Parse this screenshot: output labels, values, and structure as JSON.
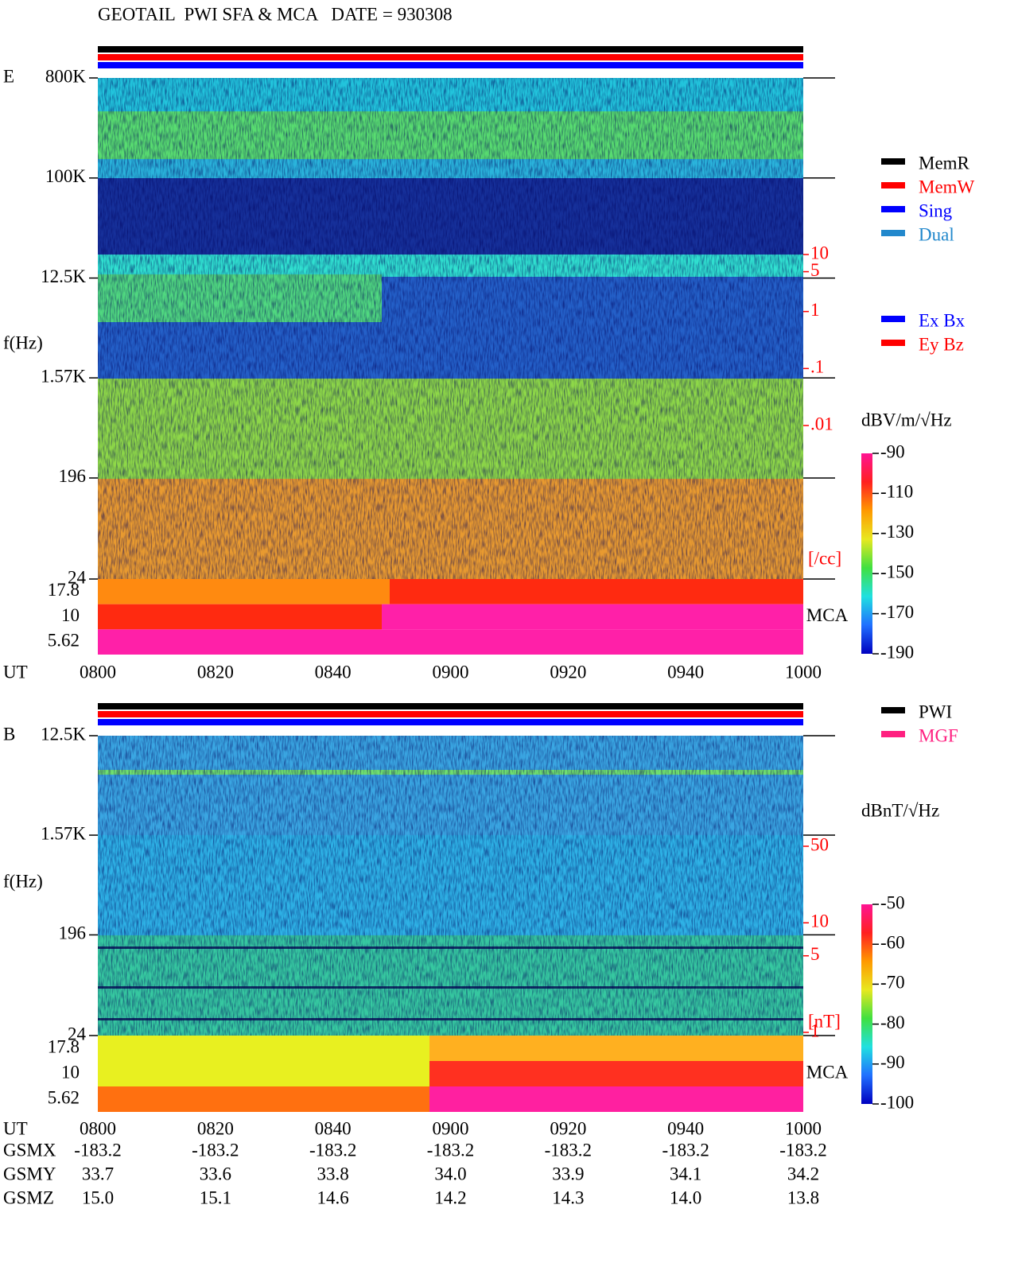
{
  "title": "GEOTAIL  PWI SFA & MCA   DATE = 930308",
  "legends": [
    [
      {
        "name": "MemR",
        "color": "#000000"
      },
      {
        "name": "MemW",
        "color": "#ff0000"
      },
      {
        "name": "Sing",
        "color": "#0000ff"
      },
      {
        "name": "Dual",
        "color": "#2288cc"
      }
    ],
    [
      {
        "name": "Ex Bx",
        "color": "#0000ff"
      },
      {
        "name": "Ey Bz",
        "color": "#ff0000"
      }
    ],
    [
      {
        "name": "PWI",
        "color": "#000000"
      },
      {
        "name": "MGF",
        "color": "#ff2080"
      }
    ]
  ],
  "chart_data": [
    {
      "type": "spectrogram",
      "panel_label": "E",
      "ylabel": "f(Hz)",
      "log_y": true,
      "ylim": [
        24,
        800000
      ],
      "yticks": [
        {
          "value": 800000,
          "label": "800K"
        },
        {
          "value": 100000,
          "label": "100K"
        },
        {
          "value": 12500,
          "label": "12.5K"
        },
        {
          "value": 1570,
          "label": "1.57K"
        },
        196,
        24
      ],
      "mca_label": "MCA",
      "mca_channels": [
        "17.8",
        "10",
        "5.62"
      ],
      "xlabel": "UT",
      "categories": [
        "0800",
        "0820",
        "0840",
        "0900",
        "0920",
        "0940",
        "1000"
      ],
      "y2label": "[/cc]",
      "y2_color": "#ff0000",
      "y2lim": [
        0.01,
        10
      ],
      "y2ticks": [
        10,
        5,
        1,
        {
          "value": 0.1,
          "label": ".1"
        },
        {
          "value": 0.01,
          "label": ".01"
        }
      ],
      "colorbar": {
        "label": "dBV/m/√Hz",
        "clim": [
          -190,
          -90
        ],
        "ticks": [
          -90,
          -110,
          -130,
          -150,
          -170,
          -190
        ],
        "colors": [
          "#ff1493",
          "#ff2020",
          "#ff9900",
          "#e8e820",
          "#40e040",
          "#20e0e0",
          "#2070ff",
          "#0000c0"
        ]
      }
    },
    {
      "type": "spectrogram",
      "panel_label": "B",
      "ylabel": "f(Hz)",
      "log_y": true,
      "ylim": [
        24,
        12500
      ],
      "yticks": [
        {
          "value": 12500,
          "label": "12.5K"
        },
        {
          "value": 1570,
          "label": "1.57K"
        },
        196,
        24
      ],
      "mca_label": "MCA",
      "mca_channels": [
        "17.8",
        "10",
        "5.62"
      ],
      "xlabel": "UT",
      "categories": [
        "0800",
        "0820",
        "0840",
        "0900",
        "0920",
        "0940",
        "1000"
      ],
      "y2label": "[nT]",
      "y2_color": "#ff0000",
      "y2lim": [
        1,
        50
      ],
      "y2ticks": [
        50,
        10,
        5,
        1
      ],
      "colorbar": {
        "label": "dBnT/√Hz",
        "clim": [
          -100,
          -50
        ],
        "ticks": [
          -50,
          -60,
          -70,
          -80,
          -90,
          -100
        ],
        "colors": [
          "#ff1493",
          "#ff2020",
          "#ff9900",
          "#e8e820",
          "#40e040",
          "#20e0e0",
          "#2070ff",
          "#0000c0"
        ]
      }
    }
  ],
  "orbit": {
    "rows": [
      {
        "label": "GSMX",
        "values": [
          "-183.2",
          "-183.2",
          "-183.2",
          "-183.2",
          "-183.2",
          "-183.2",
          "-183.2"
        ]
      },
      {
        "label": "GSMY",
        "values": [
          "33.7",
          "33.6",
          "33.8",
          "34.0",
          "33.9",
          "34.1",
          "34.2"
        ]
      },
      {
        "label": "GSMZ",
        "values": [
          "15.0",
          "15.1",
          "14.6",
          "14.2",
          "14.3",
          "14.0",
          "13.8"
        ]
      }
    ]
  }
}
